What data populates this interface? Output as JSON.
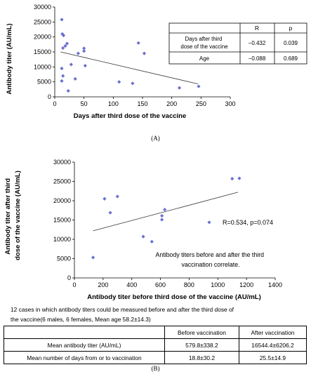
{
  "figure": {
    "panel_a_label": "(A)",
    "panel_b_label": "(B)",
    "note_line1": "12 cases in which antibody titers could be measured before and after the third dose of",
    "note_line2": "the vaccine(6 males, 6 females, Mean age 58.2±14.3)"
  },
  "stats_table": {
    "header": [
      "",
      "R",
      "p"
    ],
    "rows": [
      [
        "Days after third dose of the vaccine",
        "−0.432",
        "0.039"
      ],
      [
        "Age",
        "−0.088",
        "0.689"
      ]
    ]
  },
  "summary_table": {
    "header": [
      "",
      "Before vaccination",
      "After vaccination"
    ],
    "rows": [
      [
        "Mean antibody titer (AU/mL)",
        "579.8±338.2",
        "16544.4±6206.2"
      ],
      [
        "Mean number of days from or to vaccination",
        "18.8±30.2",
        "25.5±14.9"
      ]
    ]
  },
  "chart_data": [
    {
      "type": "scatter",
      "xlabel": "Days after third dose of the vaccine",
      "ylabel": "Antibody titer (AU/mL)",
      "xlim": [
        0,
        300
      ],
      "ylim": [
        0,
        30000
      ],
      "xticks": [
        "0",
        "50",
        "100",
        "150",
        "200",
        "250",
        "300"
      ],
      "yticks": [
        "0",
        "5000",
        "10000",
        "15000",
        "20000",
        "25000",
        "30000"
      ],
      "marker_color": "#6a6fd0",
      "trendline": {
        "x": [
          10,
          245
        ],
        "y": [
          15000,
          4300
        ]
      },
      "points": [
        [
          12,
          25800
        ],
        [
          13,
          21000
        ],
        [
          15,
          20500
        ],
        [
          14,
          16300
        ],
        [
          12,
          9500
        ],
        [
          14,
          7000
        ],
        [
          12,
          5300
        ],
        [
          18,
          17000
        ],
        [
          21,
          17800
        ],
        [
          23,
          2000
        ],
        [
          28,
          10800
        ],
        [
          35,
          6000
        ],
        [
          40,
          14500
        ],
        [
          50,
          16200
        ],
        [
          50,
          15300
        ],
        [
          52,
          10400
        ],
        [
          110,
          5000
        ],
        [
          133,
          4500
        ],
        [
          143,
          18000
        ],
        [
          153,
          14500
        ],
        [
          213,
          3000
        ],
        [
          246,
          3500
        ]
      ]
    },
    {
      "type": "scatter",
      "xlabel": "Antibody titer before third dose of the vaccine (AU/mL)",
      "ylabel": "Antibody titer after third dose of the vaccine (AU/mL)",
      "xlim": [
        0,
        1400
      ],
      "ylim": [
        0,
        30000
      ],
      "xticks": [
        "0",
        "200",
        "400",
        "600",
        "800",
        "1000",
        "1200",
        "1400"
      ],
      "yticks": [
        "0",
        "5000",
        "10000",
        "15000",
        "20000",
        "25000",
        "30000"
      ],
      "marker_color": "#6a6fd0",
      "trendline": {
        "x": [
          130,
          1140
        ],
        "y": [
          12200,
          22200
        ]
      },
      "annotation_stat": "R=0.534, p=0.074",
      "annotation_text": [
        "Antibody titers before and after the third",
        "vaccination correlate."
      ],
      "points": [
        [
          130,
          5300
        ],
        [
          210,
          20500
        ],
        [
          250,
          16900
        ],
        [
          300,
          21100
        ],
        [
          480,
          10700
        ],
        [
          540,
          9400
        ],
        [
          610,
          15100
        ],
        [
          610,
          16100
        ],
        [
          630,
          17700
        ],
        [
          940,
          14400
        ],
        [
          1100,
          25700
        ],
        [
          1150,
          25800
        ]
      ]
    }
  ]
}
